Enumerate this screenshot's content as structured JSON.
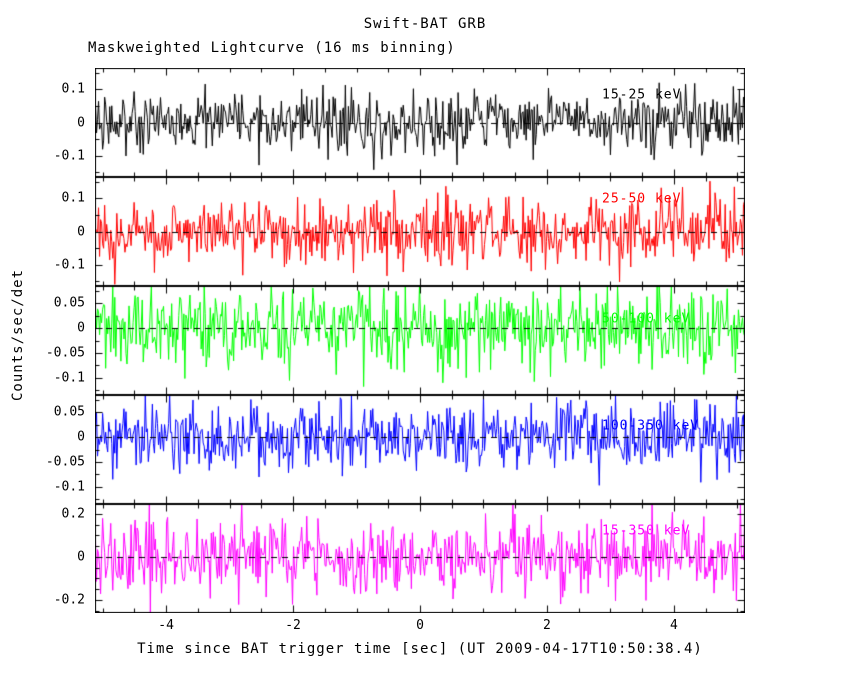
{
  "title": "Swift-BAT GRB",
  "subtitle": "Maskweighted Lightcurve (16 ms binning)",
  "axes": {
    "ylabel": "Counts/sec/det",
    "xlabel": "Time since BAT trigger time [sec] (UT 2009-04-17T10:50:38.4)",
    "x_tick_labels": [
      "-4",
      "-2",
      "0",
      "2",
      "4"
    ]
  },
  "chart_data": {
    "type": "line",
    "title": "Swift-BAT GRB",
    "subtitle": "Maskweighted Lightcurve (16 ms binning)",
    "xlabel": "Time since BAT trigger time [sec] (UT 2009-04-17T10:50:38.4)",
    "ylabel": "Counts/sec/det",
    "x_range": [
      -5.12,
      5.12
    ],
    "x_major_ticks": [
      -4,
      -2,
      0,
      2,
      4
    ],
    "x_minor_step": 0.5,
    "bin_ms": 16,
    "n_bins": 640,
    "grid": false,
    "zero_line_style": "dashed",
    "legend_position": "inside-right-per-panel",
    "description": "Five stacked energy-band panels of mask-weighted count rate vs time; each trace is statistical noise fluctuating about zero (dashed baseline), no prominent burst structure visible.",
    "panels": [
      {
        "name": "15-25-keV",
        "label": "15-25 keV",
        "color": "#000000",
        "ylim": [
          -0.165,
          0.165
        ],
        "yticks": [
          0.1,
          0,
          -0.1
        ],
        "ytick_labels": [
          "0.1",
          "0",
          "-0.1"
        ],
        "y_minor_step": 0.05,
        "noise_mean": 0,
        "noise_sigma": 0.045,
        "seed": 11,
        "label_pos": {
          "x": 0.78,
          "y": 0.25
        }
      },
      {
        "name": "25-50-keV",
        "label": "25-50 keV",
        "color": "#ff0000",
        "ylim": [
          -0.165,
          0.165
        ],
        "yticks": [
          0.1,
          0,
          -0.1
        ],
        "ytick_labels": [
          "0.1",
          "0",
          "-0.1"
        ],
        "y_minor_step": 0.05,
        "noise_mean": 0,
        "noise_sigma": 0.052,
        "seed": 22,
        "label_pos": {
          "x": 0.78,
          "y": 0.2
        }
      },
      {
        "name": "50-100-keV",
        "label": "50-100 keV",
        "color": "#00ff00",
        "ylim": [
          -0.135,
          0.085
        ],
        "yticks": [
          0.05,
          0,
          -0.05,
          -0.1
        ],
        "ytick_labels": [
          "0.05",
          "0",
          "-0.05",
          "-0.1"
        ],
        "y_minor_step": 0.025,
        "noise_mean": 0,
        "noise_sigma": 0.04,
        "seed": 33,
        "label_pos": {
          "x": 0.78,
          "y": 0.3
        }
      },
      {
        "name": "100-350-keV",
        "label": "100-350 keV",
        "color": "#0000ff",
        "ylim": [
          -0.135,
          0.085
        ],
        "yticks": [
          0.05,
          0,
          -0.05,
          -0.1
        ],
        "ytick_labels": [
          "0.05",
          "0",
          "-0.05",
          "-0.1"
        ],
        "y_minor_step": 0.025,
        "noise_mean": 0,
        "noise_sigma": 0.034,
        "seed": 44,
        "label_pos": {
          "x": 0.78,
          "y": 0.28
        }
      },
      {
        "name": "15-350-keV",
        "label": "15-350 keV",
        "color": "#ff00ff",
        "ylim": [
          -0.26,
          0.245
        ],
        "yticks": [
          0.2,
          0,
          -0.2
        ],
        "ytick_labels": [
          "0.2",
          "0",
          "-0.2"
        ],
        "y_minor_step": 0.05,
        "noise_mean": 0,
        "noise_sigma": 0.085,
        "seed": 55,
        "label_pos": {
          "x": 0.78,
          "y": 0.25
        }
      }
    ]
  }
}
